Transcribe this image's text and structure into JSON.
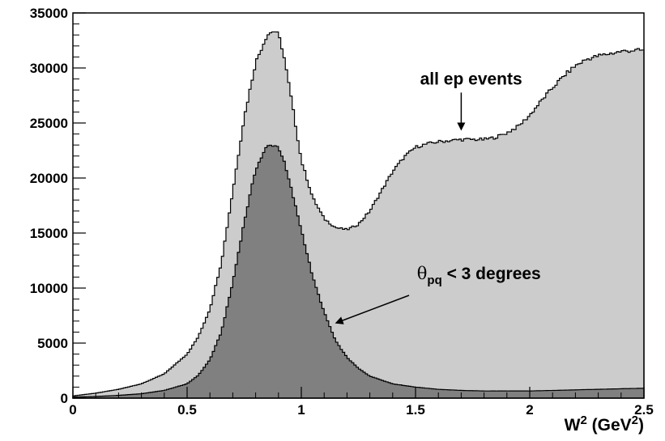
{
  "chart_data": {
    "type": "area",
    "title": "",
    "xlabel": "W",
    "xlabel_sup": "2",
    "xlabel_unit_open": "(GeV",
    "xlabel_unit_sup": "2",
    "xlabel_unit_close": ")",
    "ylabel": "",
    "xlim": [
      0,
      2.5
    ],
    "ylim": [
      0,
      35000
    ],
    "x_ticks": [
      "0",
      "0.5",
      "1",
      "1.5",
      "2",
      "2.5"
    ],
    "y_ticks": [
      "0",
      "5000",
      "10000",
      "15000",
      "20000",
      "25000",
      "30000",
      "35000"
    ],
    "grid": false,
    "series": [
      {
        "name": "all ep events",
        "color": "#cccccc",
        "x": [
          0,
          0.1,
          0.2,
          0.3,
          0.4,
          0.5,
          0.55,
          0.6,
          0.65,
          0.7,
          0.75,
          0.8,
          0.85,
          0.88,
          0.9,
          0.92,
          0.95,
          1.0,
          1.05,
          1.1,
          1.15,
          1.2,
          1.25,
          1.3,
          1.35,
          1.4,
          1.45,
          1.5,
          1.55,
          1.6,
          1.65,
          1.7,
          1.75,
          1.8,
          1.85,
          1.9,
          1.95,
          2.0,
          2.05,
          2.1,
          2.15,
          2.2,
          2.25,
          2.3,
          2.35,
          2.4,
          2.45,
          2.5
        ],
        "values": [
          200,
          450,
          800,
          1300,
          2200,
          4000,
          5600,
          8100,
          12300,
          18800,
          25500,
          30500,
          33000,
          33400,
          33000,
          31500,
          28000,
          21600,
          18200,
          16300,
          15500,
          15300,
          15800,
          17000,
          18800,
          20600,
          21900,
          22800,
          23100,
          23300,
          23400,
          23500,
          23500,
          23500,
          23700,
          24100,
          24700,
          25700,
          27000,
          28200,
          29300,
          30200,
          30800,
          31100,
          31300,
          31500,
          31600,
          31600
        ]
      },
      {
        "name": "θpq < 3 degrees",
        "color": "#808080",
        "x": [
          0,
          0.1,
          0.2,
          0.3,
          0.4,
          0.5,
          0.55,
          0.6,
          0.65,
          0.7,
          0.75,
          0.8,
          0.85,
          0.88,
          0.9,
          0.92,
          0.95,
          1.0,
          1.05,
          1.1,
          1.15,
          1.2,
          1.25,
          1.3,
          1.4,
          1.5,
          1.6,
          1.7,
          1.8,
          1.9,
          2.0,
          2.1,
          2.2,
          2.3,
          2.4,
          2.5
        ],
        "values": [
          100,
          150,
          250,
          400,
          700,
          1300,
          2100,
          3500,
          6000,
          10500,
          16000,
          20800,
          22900,
          23000,
          22800,
          21800,
          19500,
          15300,
          11000,
          7800,
          5200,
          3700,
          2700,
          2000,
          1300,
          1000,
          800,
          700,
          650,
          650,
          650,
          700,
          750,
          800,
          850,
          900
        ]
      }
    ],
    "annotations": [
      {
        "text": "all ep events",
        "x": 1.52,
        "y": 28500,
        "arrow_to": [
          1.7,
          24300
        ]
      },
      {
        "text_main": "θ",
        "text_sub": "pq",
        "text_rest": " < 3 degrees",
        "x": 1.18,
        "y": 10800,
        "arrow_to": [
          1.14,
          6700
        ]
      }
    ]
  }
}
